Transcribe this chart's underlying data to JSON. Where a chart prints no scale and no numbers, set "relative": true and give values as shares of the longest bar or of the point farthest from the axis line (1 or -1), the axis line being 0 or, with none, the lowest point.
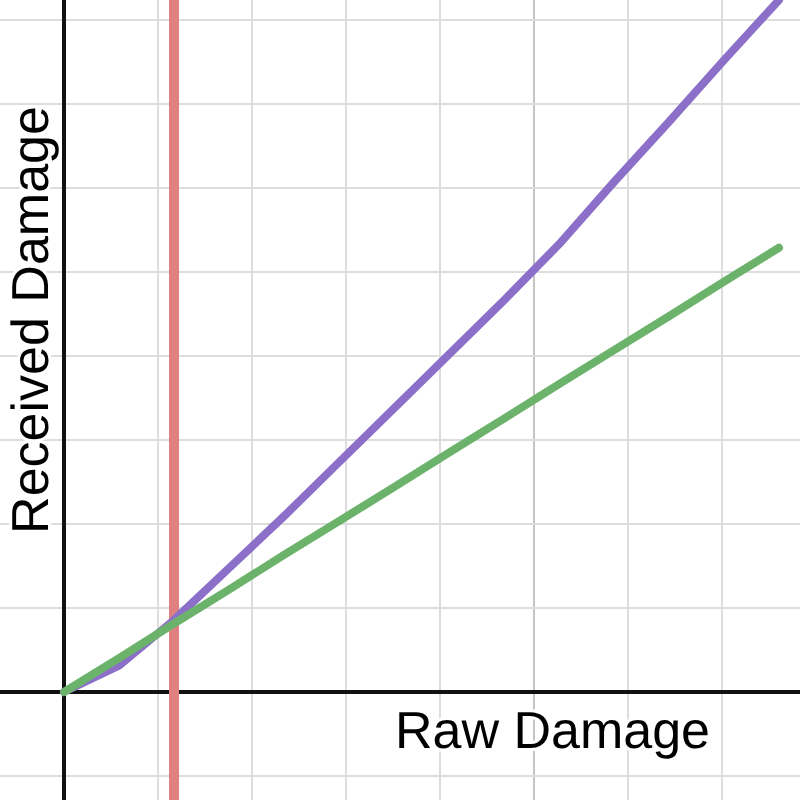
{
  "chart_data": {
    "type": "line",
    "xlabel": "Raw Damage",
    "ylabel": "Received Damage",
    "relative": true,
    "categories": [
      null,
      null,
      null,
      null,
      null,
      null,
      null,
      null,
      null,
      null,
      null,
      null,
      null,
      null
    ],
    "grid": true,
    "line_style": "solid",
    "marker": "none",
    "series": [
      {
        "color": "#8b6fc9",
        "values": [
          0,
          0.038,
          0.104,
          0.179,
          0.254,
          0.332,
          0.41,
          0.488,
          0.566,
          0.647,
          0.737,
          0.824,
          0.913,
          1
        ]
      },
      {
        "color": "#6bb36b",
        "values": [
          0,
          0.049,
          0.099,
          0.148,
          0.198,
          0.247,
          0.296,
          0.346,
          0.395,
          0.445,
          0.494,
          0.543,
          0.593,
          0.642
        ]
      }
    ]
  }
}
